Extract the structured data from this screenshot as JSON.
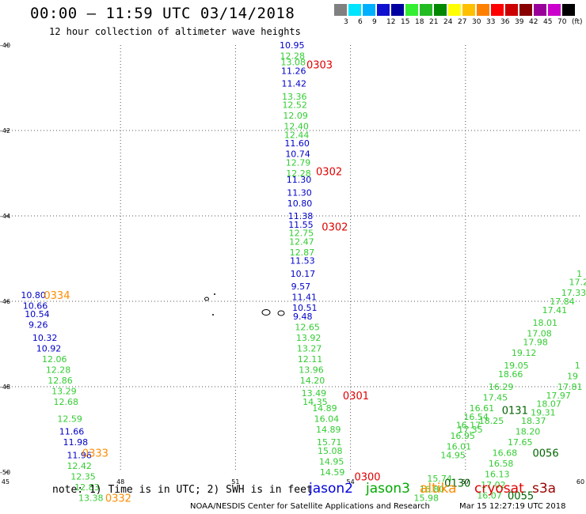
{
  "header": {
    "title": "00:00 — 11:59 UTC 03/14/2018",
    "subtitle": "12 hour collection of altimeter wave heights"
  },
  "legend": {
    "colors": [
      "#808080",
      "#00e5ff",
      "#00b0ff",
      "#1010d0",
      "#0000a0",
      "#33ee33",
      "#22bb22",
      "#008800",
      "#ffff00",
      "#ffc000",
      "#ff8000",
      "#ff0000",
      "#cc0000",
      "#880000",
      "#990099",
      "#cc00cc",
      "#000000"
    ],
    "labels": [
      "3",
      "6",
      "9",
      "12",
      "15",
      "18",
      "21",
      "24",
      "27",
      "30",
      "33",
      "36",
      "39",
      "42",
      "45",
      "70",
      "(ft)"
    ]
  },
  "axes": {
    "lat_labels": [
      "-40",
      "-42",
      "-44",
      "-46",
      "-48",
      "-50"
    ],
    "lon_labels": [
      "45",
      "48",
      "51",
      "54",
      "57",
      "60"
    ]
  },
  "tracks": [
    {
      "sat": "jason2",
      "color": "#0000c8",
      "points": [
        {
          "lat": -40.0,
          "lon": 52.15,
          "v": "10.95"
        },
        {
          "lat": -40.6,
          "lon": 52.19,
          "v": "11.26"
        },
        {
          "lat": -40.9,
          "lon": 52.2,
          "v": "11.42"
        },
        {
          "lat": -42.3,
          "lon": 52.28,
          "v": "11.60"
        },
        {
          "lat": -42.55,
          "lon": 52.3,
          "v": "10.74"
        },
        {
          "lat": -43.15,
          "lon": 52.33,
          "v": "11.30"
        },
        {
          "lat": -43.45,
          "lon": 52.34,
          "v": "11.30"
        },
        {
          "lat": -43.7,
          "lon": 52.35,
          "v": "10.80"
        },
        {
          "lat": -44.0,
          "lon": 52.37,
          "v": "11.38"
        },
        {
          "lat": -44.2,
          "lon": 52.38,
          "v": "11.55"
        },
        {
          "lat": -45.05,
          "lon": 52.42,
          "v": "11.53"
        },
        {
          "lat": -45.35,
          "lon": 52.43,
          "v": "10.17"
        },
        {
          "lat": -45.65,
          "lon": 52.45,
          "v": "9.57"
        },
        {
          "lat": -45.9,
          "lon": 52.47,
          "v": "11.41"
        },
        {
          "lat": -46.15,
          "lon": 52.48,
          "v": "10.51"
        },
        {
          "lat": -46.35,
          "lon": 52.5,
          "v": "9.48"
        },
        {
          "lat": -45.85,
          "lon": 45.4,
          "v": "10.80"
        },
        {
          "lat": -46.1,
          "lon": 45.45,
          "v": "10.66"
        },
        {
          "lat": -46.3,
          "lon": 45.5,
          "v": "10.54"
        },
        {
          "lat": -46.55,
          "lon": 45.6,
          "v": "9.26"
        },
        {
          "lat": -46.85,
          "lon": 45.7,
          "v": "10.32"
        },
        {
          "lat": -47.1,
          "lon": 45.8,
          "v": "10.92"
        },
        {
          "lat": -49.05,
          "lon": 46.4,
          "v": "11.66"
        },
        {
          "lat": -49.3,
          "lon": 46.5,
          "v": "11.98"
        },
        {
          "lat": -49.6,
          "lon": 46.6,
          "v": "11.96"
        }
      ]
    },
    {
      "sat": "jason3",
      "color": "#33cc33",
      "points": [
        {
          "lat": -40.25,
          "lon": 52.16,
          "v": "12.28"
        },
        {
          "lat": -40.4,
          "lon": 52.18,
          "v": "13.08"
        },
        {
          "lat": -41.2,
          "lon": 52.21,
          "v": "13.36"
        },
        {
          "lat": -41.4,
          "lon": 52.22,
          "v": "12.52"
        },
        {
          "lat": -41.65,
          "lon": 52.24,
          "v": "12.09"
        },
        {
          "lat": -41.9,
          "lon": 52.26,
          "v": "12.40"
        },
        {
          "lat": -42.1,
          "lon": 52.27,
          "v": "12.44"
        },
        {
          "lat": -42.75,
          "lon": 52.31,
          "v": "12.79"
        },
        {
          "lat": -43.0,
          "lon": 52.32,
          "v": "12.28"
        },
        {
          "lat": -44.4,
          "lon": 52.39,
          "v": "12.75"
        },
        {
          "lat": -44.6,
          "lon": 52.4,
          "v": "12.47"
        },
        {
          "lat": -44.85,
          "lon": 52.41,
          "v": "12.87"
        },
        {
          "lat": -46.6,
          "lon": 52.55,
          "v": "12.65"
        },
        {
          "lat": -46.85,
          "lon": 52.58,
          "v": "13.92"
        },
        {
          "lat": -47.1,
          "lon": 52.6,
          "v": "13.27"
        },
        {
          "lat": -47.35,
          "lon": 52.62,
          "v": "12.11"
        },
        {
          "lat": -47.6,
          "lon": 52.65,
          "v": "13.96"
        },
        {
          "lat": -47.85,
          "lon": 52.68,
          "v": "14.20"
        },
        {
          "lat": -48.15,
          "lon": 52.72,
          "v": "13.49"
        },
        {
          "lat": -48.35,
          "lon": 52.75,
          "v": "14.35"
        },
        {
          "lat": -48.5,
          "lon": 53.0,
          "v": "14.89"
        },
        {
          "lat": -48.75,
          "lon": 53.05,
          "v": "16.04"
        },
        {
          "lat": -49.0,
          "lon": 53.1,
          "v": "14.89"
        },
        {
          "lat": -49.3,
          "lon": 53.12,
          "v": "15.71"
        },
        {
          "lat": -49.5,
          "lon": 53.14,
          "v": "15.08"
        },
        {
          "lat": -49.75,
          "lon": 53.18,
          "v": "14.95"
        },
        {
          "lat": -50.0,
          "lon": 53.2,
          "v": "14.59"
        },
        {
          "lat": -47.35,
          "lon": 45.95,
          "v": "12.06"
        },
        {
          "lat": -47.6,
          "lon": 46.05,
          "v": "12.28"
        },
        {
          "lat": -47.85,
          "lon": 46.1,
          "v": "12.86"
        },
        {
          "lat": -48.1,
          "lon": 46.2,
          "v": "13.29"
        },
        {
          "lat": -48.35,
          "lon": 46.25,
          "v": "12.68"
        },
        {
          "lat": -48.75,
          "lon": 46.35,
          "v": "12.59"
        },
        {
          "lat": -49.85,
          "lon": 46.6,
          "v": "12.42"
        },
        {
          "lat": -50.1,
          "lon": 46.7,
          "v": "12.35"
        },
        {
          "lat": -50.35,
          "lon": 46.8,
          "v": "12.83"
        },
        {
          "lat": -50.6,
          "lon": 46.9,
          "v": "13.38"
        },
        {
          "lat": -50.15,
          "lon": 56.0,
          "v": "15.74"
        },
        {
          "lat": -50.4,
          "lon": 55.8,
          "v": "16.80"
        },
        {
          "lat": -50.6,
          "lon": 55.65,
          "v": "15.98"
        },
        {
          "lat": -49.4,
          "lon": 56.5,
          "v": "16.01"
        },
        {
          "lat": -49.6,
          "lon": 56.35,
          "v": "14.95"
        },
        {
          "lat": -48.9,
          "lon": 56.75,
          "v": "16.17"
        },
        {
          "lat": -49.15,
          "lon": 56.6,
          "v": "16.95"
        },
        {
          "lat": -49.0,
          "lon": 56.8,
          "v": "17.35"
        },
        {
          "lat": -48.7,
          "lon": 56.95,
          "v": "16.54"
        },
        {
          "lat": -48.5,
          "lon": 57.1,
          "v": "16.61"
        },
        {
          "lat": -48.8,
          "lon": 57.35,
          "v": "18.25"
        },
        {
          "lat": -48.0,
          "lon": 57.6,
          "v": "16.29"
        },
        {
          "lat": -48.25,
          "lon": 57.45,
          "v": "17.45"
        },
        {
          "lat": -47.7,
          "lon": 57.85,
          "v": "18.66"
        },
        {
          "lat": -47.5,
          "lon": 58.0,
          "v": "19.05"
        },
        {
          "lat": -47.2,
          "lon": 58.2,
          "v": "19.12"
        },
        {
          "lat": -46.95,
          "lon": 58.5,
          "v": "17.98"
        },
        {
          "lat": -46.75,
          "lon": 58.6,
          "v": "17.08"
        },
        {
          "lat": -46.5,
          "lon": 58.75,
          "v": "18.01"
        },
        {
          "lat": -46.2,
          "lon": 59.0,
          "v": "17.41"
        },
        {
          "lat": -46.0,
          "lon": 59.2,
          "v": "17.84"
        },
        {
          "lat": -45.8,
          "lon": 59.5,
          "v": "17.33"
        },
        {
          "lat": -45.55,
          "lon": 59.7,
          "v": "17.2"
        },
        {
          "lat": -45.35,
          "lon": 59.9,
          "v": "1"
        },
        {
          "lat": -49.55,
          "lon": 57.7,
          "v": "16.68"
        },
        {
          "lat": -49.8,
          "lon": 57.6,
          "v": "16.58"
        },
        {
          "lat": -50.05,
          "lon": 57.5,
          "v": "16.13"
        },
        {
          "lat": -50.3,
          "lon": 57.4,
          "v": "17.02"
        },
        {
          "lat": -50.55,
          "lon": 57.3,
          "v": "16.07"
        },
        {
          "lat": -49.3,
          "lon": 58.1,
          "v": "17.65"
        },
        {
          "lat": -49.05,
          "lon": 58.3,
          "v": "18.20"
        },
        {
          "lat": -48.8,
          "lon": 58.45,
          "v": "18.37"
        },
        {
          "lat": -48.6,
          "lon": 58.7,
          "v": "19.31"
        },
        {
          "lat": -48.4,
          "lon": 58.85,
          "v": "18.07"
        },
        {
          "lat": -48.2,
          "lon": 59.1,
          "v": "17.97"
        },
        {
          "lat": -48.0,
          "lon": 59.4,
          "v": "17.81"
        },
        {
          "lat": -47.75,
          "lon": 59.65,
          "v": "19"
        },
        {
          "lat": -47.5,
          "lon": 59.85,
          "v": "1"
        }
      ]
    }
  ],
  "time_labels": [
    {
      "text": "0303",
      "color": "#e00000",
      "lat": -40.45,
      "lon": 52.85
    },
    {
      "text": "0302",
      "color": "#e00000",
      "lat": -42.95,
      "lon": 53.1
    },
    {
      "text": "0302",
      "color": "#e00000",
      "lat": -44.25,
      "lon": 53.25
    },
    {
      "text": "0301",
      "color": "#e00000",
      "lat": -48.2,
      "lon": 53.8
    },
    {
      "text": "0300",
      "color": "#e00000",
      "lat": -50.1,
      "lon": 54.1
    },
    {
      "text": "0334",
      "color": "#ff8c00",
      "lat": -45.85,
      "lon": 46.0
    },
    {
      "text": "0333",
      "color": "#ff8c00",
      "lat": -49.55,
      "lon": 47.0
    },
    {
      "text": "0332",
      "color": "#ff8c00",
      "lat": -50.6,
      "lon": 47.6
    },
    {
      "text": "0131",
      "color": "#006400",
      "lat": -48.55,
      "lon": 57.95
    },
    {
      "text": "0130",
      "color": "#006400",
      "lat": -50.25,
      "lon": 56.45
    },
    {
      "text": "0056",
      "color": "#006400",
      "lat": -49.55,
      "lon": 58.75
    },
    {
      "text": "0055",
      "color": "#006400",
      "lat": -50.55,
      "lon": 58.1
    }
  ],
  "footer": {
    "note": "note: 1) Time is in UTC; 2) SWH is in feet",
    "satellites": [
      {
        "name": "jason2",
        "color": "#0000dd"
      },
      {
        "name": "jason3",
        "color": "#00aa00"
      },
      {
        "name": "altika",
        "color": "#ff8c00"
      },
      {
        "name": "cryosat",
        "color": "#e00000"
      },
      {
        "name": "s3a",
        "color": "#990000"
      }
    ],
    "credit": "NOAA/NESDIS Center for Satellite Applications and Research",
    "timestamp": "Mar 15 12:27:19 UTC 2018"
  }
}
